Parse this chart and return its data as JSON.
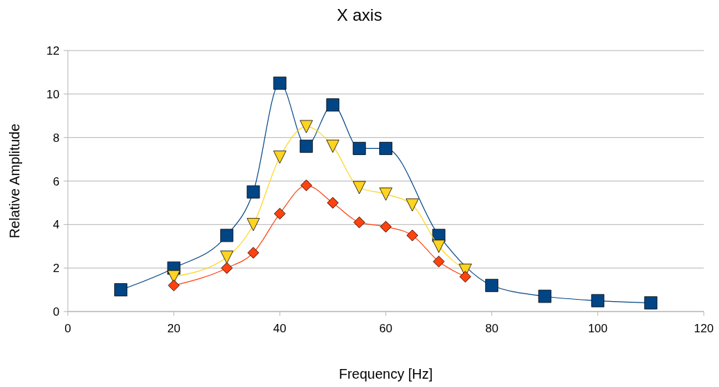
{
  "chart_data": {
    "type": "line",
    "title": "X axis",
    "xlabel": "Frequency [Hz]",
    "ylabel": "Relative Amplitude",
    "xlim": [
      0,
      120
    ],
    "xticks": [
      0,
      20,
      40,
      60,
      80,
      100,
      120
    ],
    "ylim": [
      0,
      12
    ],
    "yticks": [
      0,
      2,
      4,
      6,
      8,
      10,
      12
    ],
    "grid": "y",
    "series": [
      {
        "color": "#004586",
        "marker": "square",
        "x": [
          10,
          20,
          30,
          35,
          40,
          45,
          50,
          55,
          60,
          70,
          80,
          90,
          100,
          110
        ],
        "values": [
          1.0,
          2.0,
          3.5,
          5.5,
          10.5,
          7.6,
          9.5,
          7.5,
          7.5,
          3.5,
          1.2,
          0.7,
          0.5,
          0.4
        ]
      },
      {
        "color": "#ffd320",
        "marker": "triangle",
        "x": [
          20,
          30,
          35,
          40,
          45,
          50,
          55,
          60,
          65,
          70,
          75
        ],
        "values": [
          1.6,
          2.5,
          4.0,
          7.1,
          8.5,
          7.6,
          5.7,
          5.4,
          4.9,
          3.0,
          1.9
        ]
      },
      {
        "color": "#ff420e",
        "marker": "diamond",
        "x": [
          20,
          30,
          35,
          40,
          45,
          50,
          55,
          60,
          65,
          70,
          75
        ],
        "values": [
          1.2,
          2.0,
          2.7,
          4.5,
          5.8,
          5.0,
          4.1,
          3.9,
          3.5,
          2.3,
          1.6
        ]
      }
    ]
  }
}
